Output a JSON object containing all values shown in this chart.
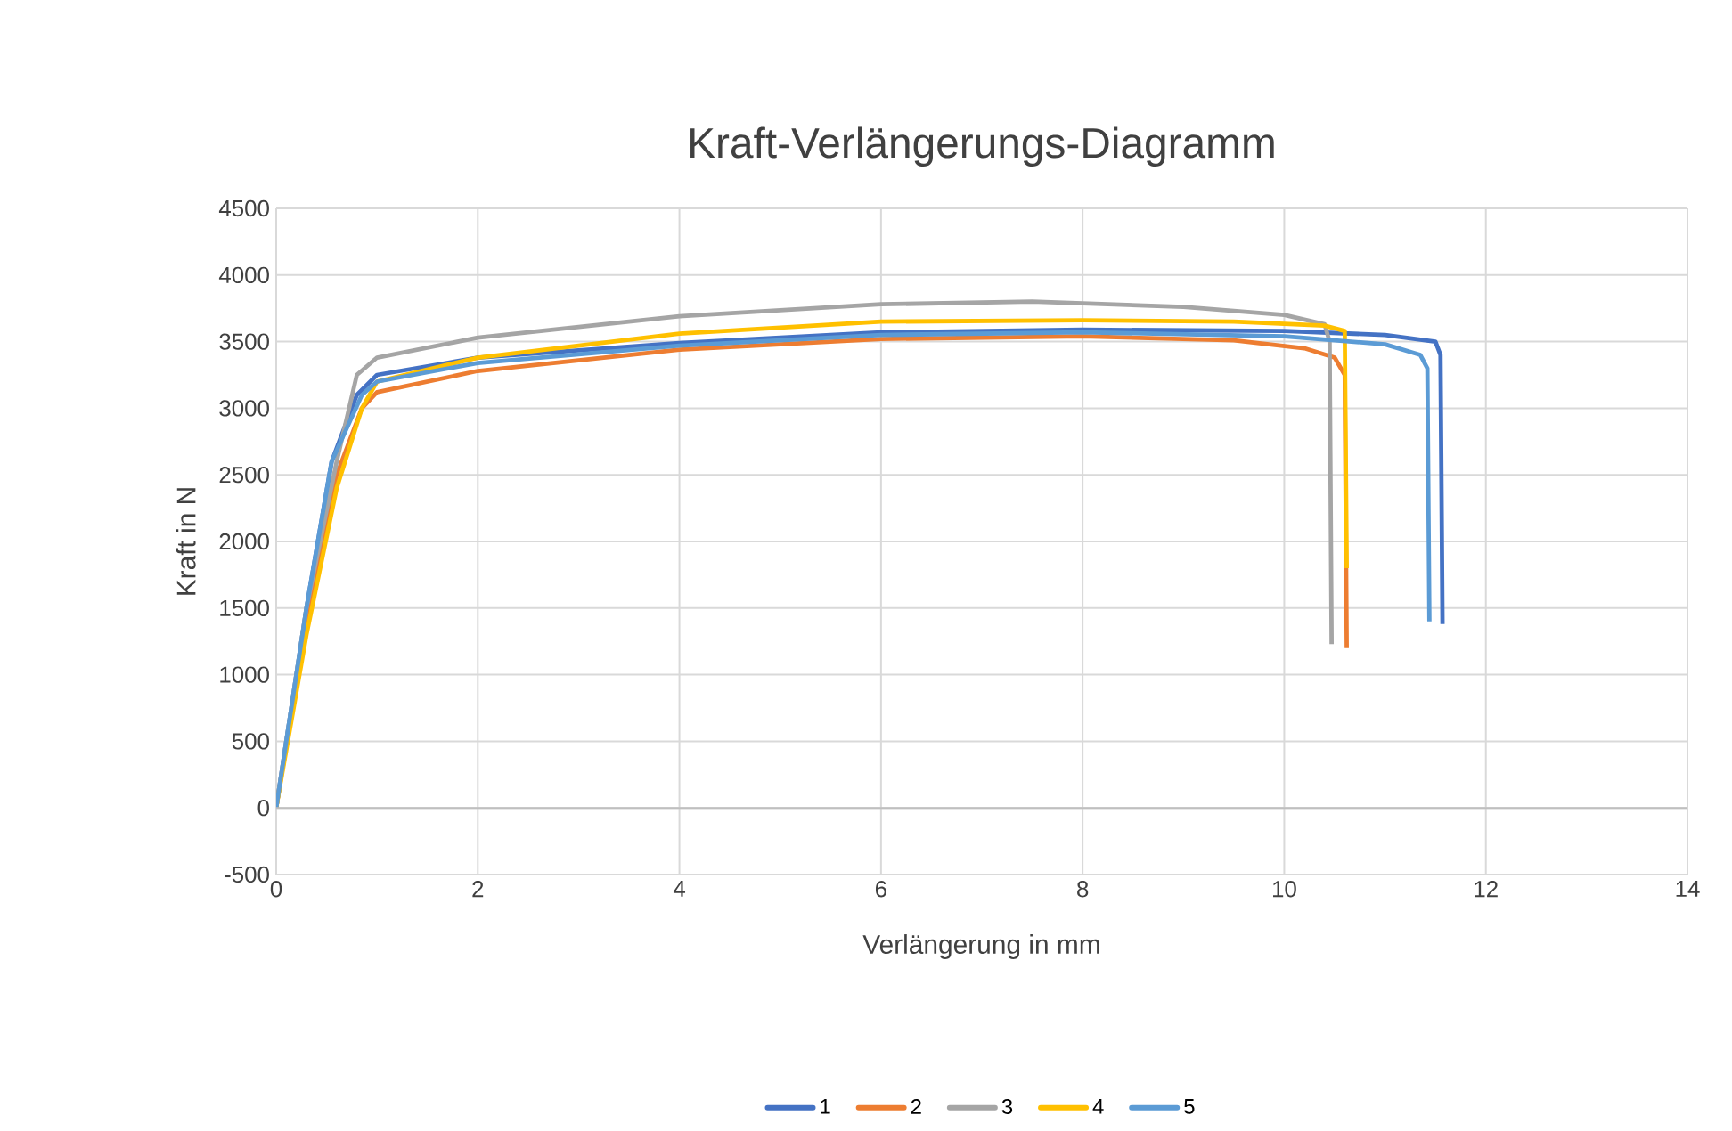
{
  "chart_data": {
    "type": "line",
    "title": "Kraft-Verlängerungs-Diagramm",
    "xlabel": "Verlängerung in mm",
    "ylabel": "Kraft in N",
    "xlim": [
      0,
      14
    ],
    "xticks": [
      0,
      2,
      4,
      6,
      8,
      10,
      12,
      14
    ],
    "ylim": [
      -500,
      4500
    ],
    "yticks": [
      -500,
      0,
      500,
      1000,
      1500,
      2000,
      2500,
      3000,
      3500,
      4000,
      4500
    ],
    "grid": true,
    "legend": "bottom",
    "marker": "none",
    "line_style": "solid",
    "series": [
      {
        "name": "1",
        "color": "#4472c4",
        "x": [
          0,
          0.3,
          0.55,
          0.8,
          1.0,
          2,
          4,
          6,
          8,
          10,
          11,
          11.5,
          11.55,
          11.57
        ],
        "values": [
          0,
          1500,
          2600,
          3100,
          3250,
          3380,
          3490,
          3570,
          3590,
          3580,
          3550,
          3500,
          3400,
          1380
        ]
      },
      {
        "name": "2",
        "color": "#ed7d31",
        "x": [
          0,
          0.3,
          0.6,
          0.85,
          1.0,
          2,
          4,
          6,
          8,
          9.5,
          10.2,
          10.5,
          10.6,
          10.62
        ],
        "values": [
          0,
          1400,
          2500,
          3000,
          3120,
          3280,
          3440,
          3520,
          3540,
          3510,
          3450,
          3380,
          3250,
          1200
        ]
      },
      {
        "name": "3",
        "color": "#a5a5a5",
        "x": [
          0,
          0.3,
          0.6,
          0.8,
          1.0,
          2,
          4,
          6,
          7.5,
          9,
          10,
          10.4,
          10.45,
          10.47
        ],
        "values": [
          0,
          1500,
          2600,
          3250,
          3380,
          3530,
          3690,
          3780,
          3800,
          3760,
          3700,
          3630,
          3500,
          1230
        ]
      },
      {
        "name": "4",
        "color": "#ffc000",
        "x": [
          0,
          0.3,
          0.6,
          0.85,
          1.0,
          2,
          4,
          6,
          8,
          9.5,
          10.4,
          10.6,
          10.62
        ],
        "values": [
          0,
          1300,
          2400,
          3000,
          3200,
          3380,
          3560,
          3650,
          3660,
          3650,
          3620,
          3580,
          1800
        ]
      },
      {
        "name": "5",
        "color": "#5b9bd5",
        "x": [
          0,
          0.3,
          0.55,
          0.85,
          1.0,
          2,
          4,
          6,
          8,
          10,
          11,
          11.35,
          11.42,
          11.44
        ],
        "values": [
          0,
          1500,
          2600,
          3100,
          3200,
          3340,
          3470,
          3550,
          3570,
          3540,
          3480,
          3400,
          3300,
          1400
        ]
      }
    ]
  }
}
